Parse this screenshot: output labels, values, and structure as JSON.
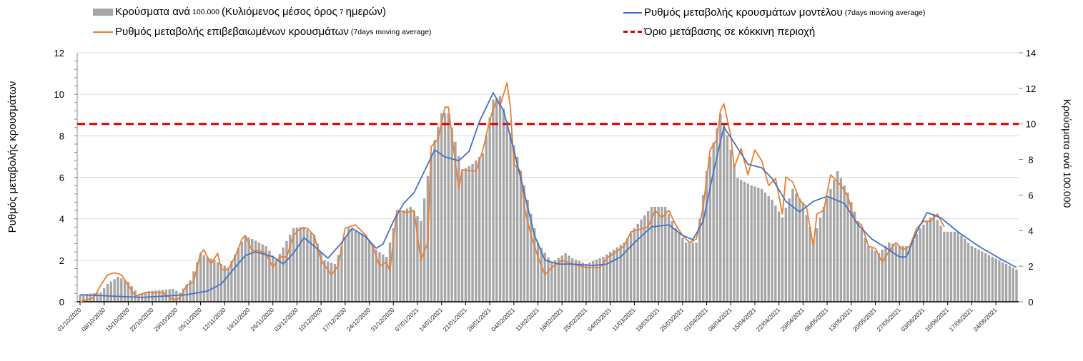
{
  "chart_data": {
    "type": "bar+line",
    "legend": {
      "bars": {
        "main": "Κρούσματα ανά",
        "small1": "100.000",
        "main2": "(Κυλιόμενος μέσος όρος",
        "small2": "7",
        "main3": "ημερών)"
      },
      "orange": {
        "main": "Ρυθμός μεταβολής επιβεβαιωμένων κρουσμάτων",
        "small": "(7days moving average)"
      },
      "blue": {
        "main": "Ρυθμός μεταβολής κρουσμάτων μοντέλου",
        "small": "(7days moving average)"
      },
      "red": {
        "main": "Όριο μετάβασης σε κόκκινη περιοχή"
      }
    },
    "ylabel_left": "Ρυθμός μεταβολής κρουσμάτων",
    "ylabel_right": "Κρούσματα ανά 100.000",
    "ylim_left": [
      0,
      12
    ],
    "ylim_right": [
      0,
      14
    ],
    "yticks_left": [
      "0",
      "2",
      "4",
      "6",
      "8",
      "10",
      "12"
    ],
    "yticks_right": [
      "0",
      "2",
      "4",
      "6",
      "8",
      "10",
      "12",
      "14"
    ],
    "threshold_right": 10,
    "x_days_total": 272,
    "x_tick_step_days": 7,
    "x_ticks": [
      "01/10/2020",
      "08/10/2020",
      "15/10/2020",
      "22/10/2020",
      "29/10/2020",
      "05/11/2020",
      "12/11/2020",
      "19/11/2020",
      "26/11/2020",
      "03/12/2020",
      "10/12/2020",
      "17/12/2020",
      "24/12/2020",
      "31/12/2020",
      "07/01/2021",
      "14/01/2021",
      "21/01/2021",
      "28/01/2021",
      "04/02/2021",
      "11/02/2021",
      "18/02/2021",
      "25/02/2021",
      "04/03/2021",
      "11/03/2021",
      "18/03/2021",
      "25/03/2021",
      "01/04/2021",
      "08/04/2021",
      "15/04/2021",
      "22/04/2021",
      "29/04/2021",
      "06/05/2021",
      "13/05/2021",
      "20/05/2021",
      "27/05/2021",
      "03/06/2021",
      "10/06/2021",
      "17/06/2021",
      "24/06/2021"
    ],
    "colors": {
      "bars": "#a5a5a5",
      "orange": "#ed7d31",
      "blue": "#4472c4",
      "red": "#e00000"
    },
    "series": [
      {
        "name": "cases_per_100k",
        "axis": "right",
        "kind": "bar",
        "points_day_value": [
          [
            0,
            0.4
          ],
          [
            6,
            0.52
          ],
          [
            8,
            1.0
          ],
          [
            11,
            1.41
          ],
          [
            14,
            1.12
          ],
          [
            17,
            0.4
          ],
          [
            20,
            0.6
          ],
          [
            27,
            0.72
          ],
          [
            29,
            0.52
          ],
          [
            32,
            1.2
          ],
          [
            35,
            2.73
          ],
          [
            39,
            2.33
          ],
          [
            43,
            1.93
          ],
          [
            48,
            3.73
          ],
          [
            54,
            3.13
          ],
          [
            57,
            2.33
          ],
          [
            62,
            4.14
          ],
          [
            65,
            4.22
          ],
          [
            68,
            3.73
          ],
          [
            71,
            2.33
          ],
          [
            74,
            2.13
          ],
          [
            78,
            4.14
          ],
          [
            83,
            3.73
          ],
          [
            86,
            2.93
          ],
          [
            89,
            2.53
          ],
          [
            92,
            4.94
          ],
          [
            96,
            5.34
          ],
          [
            99,
            4.54
          ],
          [
            102,
            8.35
          ],
          [
            105,
            10.6
          ],
          [
            107,
            10.6
          ],
          [
            111,
            7.39
          ],
          [
            114,
            7.75
          ],
          [
            117,
            8.35
          ],
          [
            120,
            11.37
          ],
          [
            122,
            11.57
          ],
          [
            124,
            10.16
          ],
          [
            127,
            8.15
          ],
          [
            130,
            5.74
          ],
          [
            133,
            3.33
          ],
          [
            137,
            2.21
          ],
          [
            141,
            2.73
          ],
          [
            143,
            2.45
          ],
          [
            147,
            2.13
          ],
          [
            152,
            2.53
          ],
          [
            155,
            2.93
          ],
          [
            158,
            3.33
          ],
          [
            161,
            4.14
          ],
          [
            166,
            5.34
          ],
          [
            170,
            5.34
          ],
          [
            173,
            4.14
          ],
          [
            176,
            3.33
          ],
          [
            179,
            3.33
          ],
          [
            182,
            7.35
          ],
          [
            186,
            10.56
          ],
          [
            188,
            9.36
          ],
          [
            191,
            6.95
          ],
          [
            195,
            6.55
          ],
          [
            198,
            6.35
          ],
          [
            201,
            5.74
          ],
          [
            204,
            4.74
          ],
          [
            207,
            6.35
          ],
          [
            210,
            5.54
          ],
          [
            213,
            3.53
          ],
          [
            216,
            5.34
          ],
          [
            220,
            7.35
          ],
          [
            223,
            6.14
          ],
          [
            226,
            4.54
          ],
          [
            229,
            3.13
          ],
          [
            232,
            2.73
          ],
          [
            235,
            3.33
          ],
          [
            238,
            3.13
          ],
          [
            241,
            3.13
          ],
          [
            244,
            4.14
          ],
          [
            248,
            4.94
          ],
          [
            251,
            3.94
          ],
          [
            255,
            3.94
          ],
          [
            259,
            3.13
          ],
          [
            263,
            2.73
          ],
          [
            267,
            2.33
          ],
          [
            272,
            1.81
          ]
        ]
      },
      {
        "name": "model_rate",
        "axis": "left",
        "kind": "line",
        "color": "blue",
        "points_day_value": [
          [
            0,
            0.34
          ],
          [
            18,
            0.21
          ],
          [
            31,
            0.34
          ],
          [
            37,
            0.52
          ],
          [
            41,
            0.86
          ],
          [
            45,
            1.65
          ],
          [
            48,
            2.23
          ],
          [
            51,
            2.41
          ],
          [
            56,
            2.17
          ],
          [
            59,
            1.82
          ],
          [
            62,
            2.34
          ],
          [
            65,
            3.09
          ],
          [
            68,
            2.68
          ],
          [
            72,
            2.1
          ],
          [
            76,
            2.85
          ],
          [
            79,
            3.54
          ],
          [
            83,
            3.13
          ],
          [
            86,
            2.58
          ],
          [
            88,
            2.78
          ],
          [
            91,
            3.88
          ],
          [
            94,
            4.74
          ],
          [
            97,
            5.26
          ],
          [
            100,
            6.29
          ],
          [
            103,
            7.32
          ],
          [
            106,
            6.98
          ],
          [
            110,
            6.8
          ],
          [
            113,
            7.25
          ],
          [
            116,
            8.69
          ],
          [
            120,
            10.07
          ],
          [
            123,
            9.21
          ],
          [
            126,
            7.32
          ],
          [
            129,
            5.26
          ],
          [
            132,
            3.2
          ],
          [
            135,
            2.0
          ],
          [
            139,
            1.82
          ],
          [
            143,
            1.82
          ],
          [
            149,
            1.75
          ],
          [
            153,
            1.82
          ],
          [
            157,
            2.16
          ],
          [
            161,
            2.85
          ],
          [
            166,
            3.61
          ],
          [
            171,
            3.71
          ],
          [
            175,
            3.2
          ],
          [
            178,
            2.99
          ],
          [
            181,
            3.88
          ],
          [
            184,
            6.29
          ],
          [
            187,
            8.42
          ],
          [
            190,
            7.66
          ],
          [
            194,
            6.63
          ],
          [
            198,
            6.46
          ],
          [
            201,
            5.94
          ],
          [
            205,
            4.84
          ],
          [
            209,
            4.33
          ],
          [
            213,
            4.84
          ],
          [
            217,
            5.08
          ],
          [
            222,
            4.74
          ],
          [
            226,
            3.71
          ],
          [
            230,
            3.02
          ],
          [
            234,
            2.61
          ],
          [
            238,
            2.16
          ],
          [
            240,
            2.16
          ],
          [
            243,
            3.37
          ],
          [
            246,
            4.3
          ],
          [
            250,
            4.05
          ],
          [
            255,
            3.37
          ],
          [
            261,
            2.68
          ],
          [
            267,
            2.1
          ],
          [
            272,
            1.65
          ]
        ]
      },
      {
        "name": "confirmed_rate",
        "axis": "left",
        "kind": "line",
        "color": "orange",
        "points_day_value": [
          [
            0,
            0
          ],
          [
            2,
            0.1
          ],
          [
            4,
            0.2
          ],
          [
            6,
            0.8
          ],
          [
            8,
            1.3
          ],
          [
            10,
            1.4
          ],
          [
            12,
            1.3
          ],
          [
            14,
            0.8
          ],
          [
            16,
            0.27
          ],
          [
            19,
            0.45
          ],
          [
            24,
            0.45
          ],
          [
            27,
            0.1
          ],
          [
            29,
            0.17
          ],
          [
            31,
            0.8
          ],
          [
            33,
            0.96
          ],
          [
            35,
            2.34
          ],
          [
            36,
            2.5
          ],
          [
            38,
            1.82
          ],
          [
            40,
            2.34
          ],
          [
            41,
            1.55
          ],
          [
            43,
            1.55
          ],
          [
            45,
            2.16
          ],
          [
            47,
            3.02
          ],
          [
            48,
            3.2
          ],
          [
            50,
            2.44
          ],
          [
            51,
            2.5
          ],
          [
            54,
            2.34
          ],
          [
            56,
            1.65
          ],
          [
            58,
            2.16
          ],
          [
            60,
            2.16
          ],
          [
            62,
            3.2
          ],
          [
            64,
            3.54
          ],
          [
            66,
            3.54
          ],
          [
            68,
            3.2
          ],
          [
            70,
            2.0
          ],
          [
            73,
            1.3
          ],
          [
            75,
            1.75
          ],
          [
            77,
            3.54
          ],
          [
            80,
            3.71
          ],
          [
            83,
            3.2
          ],
          [
            85,
            2.68
          ],
          [
            87,
            1.72
          ],
          [
            89,
            1.92
          ],
          [
            90,
            1.48
          ],
          [
            92,
            4.4
          ],
          [
            95,
            4.3
          ],
          [
            97,
            4.4
          ],
          [
            99,
            2.0
          ],
          [
            101,
            2.85
          ],
          [
            102,
            7.49
          ],
          [
            104,
            7.84
          ],
          [
            106,
            9.38
          ],
          [
            107,
            9.38
          ],
          [
            110,
            5.43
          ],
          [
            111,
            6.36
          ],
          [
            115,
            6.29
          ],
          [
            117,
            7.32
          ],
          [
            119,
            8.76
          ],
          [
            121,
            9.73
          ],
          [
            122,
            9.45
          ],
          [
            124,
            10.55
          ],
          [
            125,
            9.38
          ],
          [
            126,
            6.63
          ],
          [
            128,
            6.29
          ],
          [
            129,
            4.57
          ],
          [
            131,
            3.2
          ],
          [
            133,
            2.16
          ],
          [
            135,
            1.3
          ],
          [
            137,
            1.65
          ],
          [
            140,
            2.0
          ],
          [
            143,
            1.82
          ],
          [
            147,
            1.65
          ],
          [
            151,
            1.65
          ],
          [
            153,
            2.1
          ],
          [
            158,
            2.68
          ],
          [
            160,
            3.37
          ],
          [
            165,
            3.61
          ],
          [
            167,
            4.4
          ],
          [
            169,
            4.05
          ],
          [
            171,
            4.4
          ],
          [
            173,
            3.71
          ],
          [
            175,
            3.2
          ],
          [
            177,
            2.85
          ],
          [
            179,
            3.02
          ],
          [
            181,
            4.57
          ],
          [
            183,
            7.32
          ],
          [
            185,
            7.84
          ],
          [
            186,
            9.21
          ],
          [
            187,
            9.55
          ],
          [
            189,
            8.0
          ],
          [
            190,
            6.46
          ],
          [
            192,
            7.39
          ],
          [
            194,
            6.12
          ],
          [
            196,
            7.32
          ],
          [
            198,
            6.8
          ],
          [
            200,
            5.6
          ],
          [
            202,
            5.94
          ],
          [
            204,
            4.23
          ],
          [
            205,
            6.01
          ],
          [
            207,
            5.77
          ],
          [
            209,
            4.91
          ],
          [
            211,
            4.57
          ],
          [
            213,
            2.68
          ],
          [
            214,
            4.23
          ],
          [
            216,
            4.4
          ],
          [
            218,
            6.12
          ],
          [
            221,
            5.6
          ],
          [
            223,
            5.09
          ],
          [
            225,
            3.88
          ],
          [
            227,
            3.71
          ],
          [
            229,
            2.68
          ],
          [
            231,
            2.58
          ],
          [
            233,
            1.89
          ],
          [
            235,
            2.44
          ],
          [
            237,
            2.85
          ],
          [
            239,
            2.51
          ],
          [
            241,
            2.68
          ],
          [
            243,
            3.54
          ],
          [
            245,
            3.88
          ],
          [
            247,
            3.88
          ],
          [
            249,
            4.23
          ],
          [
            251,
            3.61
          ]
        ]
      }
    ]
  }
}
